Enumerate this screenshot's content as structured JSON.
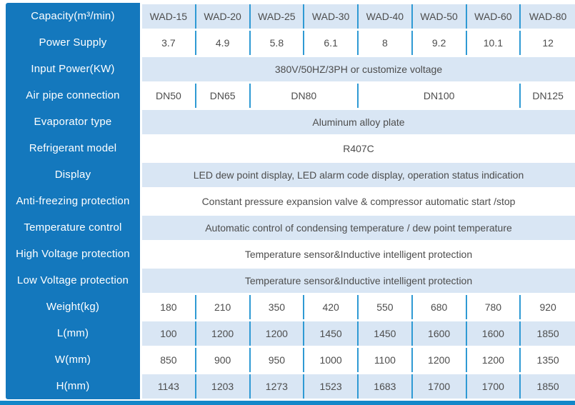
{
  "colors": {
    "label-bg": "#1478bd",
    "row-alt-bg": "#d9e6f4",
    "divider": "#2f9ad4",
    "bottom-bar": "#1287c9",
    "text-dark": "#4d4d4d",
    "label-text": "#ffffff"
  },
  "table": {
    "column_count": 8,
    "rows": [
      {
        "label": "Capacity(m³/min)",
        "cells": [
          {
            "t": "WAD-15"
          },
          {
            "t": "WAD-20"
          },
          {
            "t": "WAD-25"
          },
          {
            "t": "WAD-30"
          },
          {
            "t": "WAD-40"
          },
          {
            "t": "WAD-50"
          },
          {
            "t": "WAD-60"
          },
          {
            "t": "WAD-80"
          }
        ]
      },
      {
        "label": "Power Supply",
        "cells": [
          {
            "t": "3.7"
          },
          {
            "t": "4.9"
          },
          {
            "t": "5.8"
          },
          {
            "t": "6.1"
          },
          {
            "t": "8"
          },
          {
            "t": "9.2"
          },
          {
            "t": "10.1"
          },
          {
            "t": "12"
          }
        ]
      },
      {
        "label": "Input Power(KW)",
        "cells": [
          {
            "t": "380V/50HZ/3PH or customize voltage",
            "span": 8
          }
        ]
      },
      {
        "label": "Air pipe connection",
        "cells": [
          {
            "t": "DN50"
          },
          {
            "t": "DN65"
          },
          {
            "t": "DN80",
            "span": 2
          },
          {
            "t": "DN100",
            "span": 3
          },
          {
            "t": "DN125"
          }
        ]
      },
      {
        "label": "Evaporator type",
        "cells": [
          {
            "t": "Aluminum alloy plate",
            "span": 8
          }
        ]
      },
      {
        "label": "Refrigerant model",
        "cells": [
          {
            "t": "R407C",
            "span": 8
          }
        ]
      },
      {
        "label": "Display",
        "cells": [
          {
            "t": "LED dew point display, LED alarm code display, operation status indication",
            "span": 8
          }
        ]
      },
      {
        "label": "Anti-freezing protection",
        "cells": [
          {
            "t": "Constant pressure expansion valve & compressor automatic start /stop",
            "span": 8
          }
        ]
      },
      {
        "label": "Temperature control",
        "cells": [
          {
            "t": "Automatic control of condensing temperature / dew point temperature",
            "span": 8
          }
        ]
      },
      {
        "label": "High Voltage protection",
        "cells": [
          {
            "t": "Temperature sensor&Inductive intelligent protection",
            "span": 8
          }
        ]
      },
      {
        "label": "Low Voltage protection",
        "cells": [
          {
            "t": "Temperature sensor&Inductive intelligent protection",
            "span": 8
          }
        ]
      },
      {
        "label": "Weight(kg)",
        "cells": [
          {
            "t": "180"
          },
          {
            "t": "210"
          },
          {
            "t": "350"
          },
          {
            "t": "420"
          },
          {
            "t": "550"
          },
          {
            "t": "680"
          },
          {
            "t": "780"
          },
          {
            "t": "920"
          }
        ]
      },
      {
        "label": "L(mm)",
        "cells": [
          {
            "t": "100"
          },
          {
            "t": "1200"
          },
          {
            "t": "1200"
          },
          {
            "t": "1450"
          },
          {
            "t": "1450"
          },
          {
            "t": "1600"
          },
          {
            "t": "1600"
          },
          {
            "t": "1850"
          }
        ]
      },
      {
        "label": "W(mm)",
        "cells": [
          {
            "t": "850"
          },
          {
            "t": "900"
          },
          {
            "t": "950"
          },
          {
            "t": "1000"
          },
          {
            "t": "1100"
          },
          {
            "t": "1200"
          },
          {
            "t": "1200"
          },
          {
            "t": "1350"
          }
        ]
      },
      {
        "label": "H(mm)",
        "cells": [
          {
            "t": "1143"
          },
          {
            "t": "1203"
          },
          {
            "t": "1273"
          },
          {
            "t": "1523"
          },
          {
            "t": "1683"
          },
          {
            "t": "1700"
          },
          {
            "t": "1700"
          },
          {
            "t": "1850"
          }
        ]
      }
    ]
  }
}
